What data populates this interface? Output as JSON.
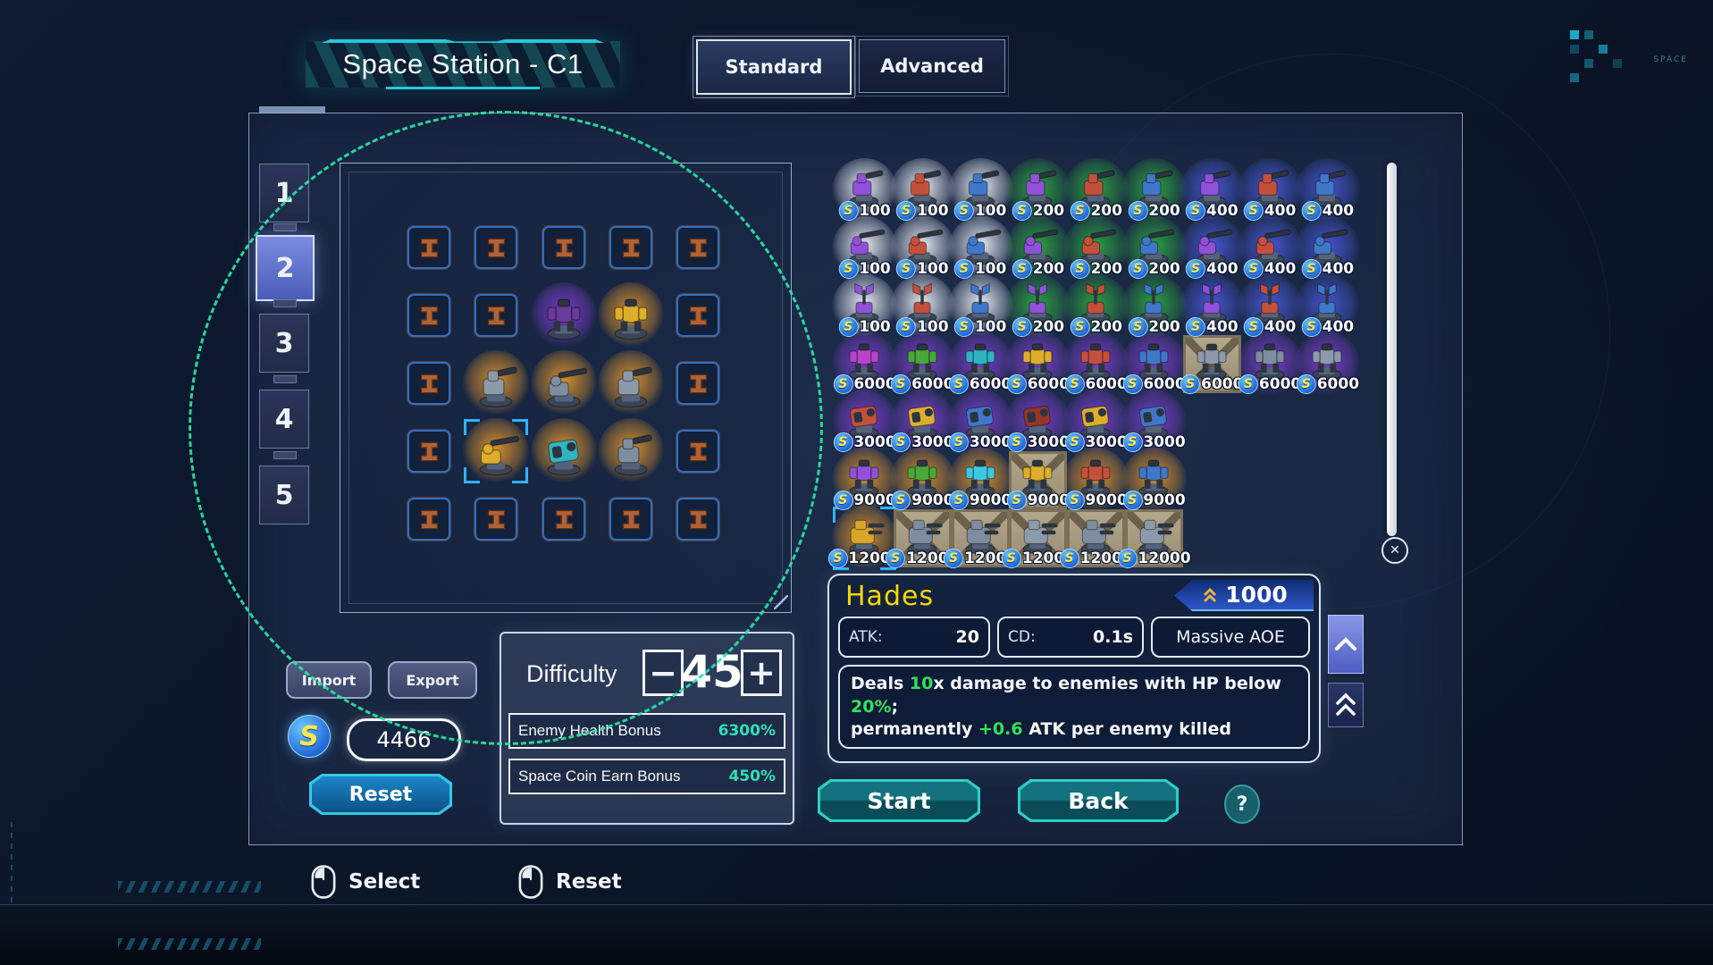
{
  "title": "Space Station - C1",
  "mode_tabs": [
    {
      "label": "Standard",
      "selected": true
    },
    {
      "label": "Advanced",
      "selected": false
    }
  ],
  "level_tabs": [
    {
      "label": "1",
      "selected": false
    },
    {
      "label": "2",
      "selected": true
    },
    {
      "label": "3",
      "selected": false
    },
    {
      "label": "4",
      "selected": false
    },
    {
      "label": "5",
      "selected": false
    }
  ],
  "currency_symbol": "S",
  "palette": {
    "purple": "#9050d8",
    "red": "#c4503c",
    "blue": "#3f77c9",
    "magenta": "#b844c8",
    "green": "#4aa838",
    "teal": "#2fb4c4",
    "cyan": "#3ec6e0",
    "yellow": "#dcae2c",
    "steel": "#8c9aaa",
    "slate": "#7e8ea0",
    "darkred": "#993428",
    "darkpurple": "#6a3a9c",
    "gold": "#d8a62a"
  },
  "board": {
    "rows": [
      [
        {
          "k": "e"
        },
        {
          "k": "e"
        },
        {
          "k": "e"
        },
        {
          "k": "e"
        },
        {
          "k": "e"
        }
      ],
      [
        {
          "k": "e"
        },
        {
          "k": "e"
        },
        {
          "k": "t",
          "t": "mech",
          "c": "darkpurple",
          "g": "purple"
        },
        {
          "k": "t",
          "t": "mech",
          "c": "yellow",
          "g": "orange"
        },
        {
          "k": "e"
        }
      ],
      [
        {
          "k": "e"
        },
        {
          "k": "t",
          "t": "gun1",
          "c": "steel",
          "g": "orange"
        },
        {
          "k": "t",
          "t": "gun2",
          "c": "slate",
          "g": "orange"
        },
        {
          "k": "t",
          "t": "gun1",
          "c": "steel",
          "g": "orange"
        },
        {
          "k": "e"
        }
      ],
      [
        {
          "k": "e"
        },
        {
          "k": "t",
          "t": "gun2",
          "c": "yellow",
          "g": "orange",
          "sel": true
        },
        {
          "k": "t",
          "t": "launcher",
          "c": "teal",
          "g": "orange"
        },
        {
          "k": "t",
          "t": "gun1",
          "c": "slate",
          "g": "orange"
        },
        {
          "k": "e"
        }
      ],
      [
        {
          "k": "e"
        },
        {
          "k": "e"
        },
        {
          "k": "e"
        },
        {
          "k": "e"
        },
        {
          "k": "e"
        }
      ]
    ]
  },
  "shop": {
    "rows": [
      [
        {
          "p": "100",
          "g": "light",
          "c": "purple",
          "t": "gun1"
        },
        {
          "p": "100",
          "g": "light",
          "c": "red",
          "t": "gun1"
        },
        {
          "p": "100",
          "g": "light",
          "c": "blue",
          "t": "gun1"
        },
        {
          "p": "200",
          "g": "green",
          "c": "purple",
          "t": "gun1"
        },
        {
          "p": "200",
          "g": "green",
          "c": "red",
          "t": "gun1"
        },
        {
          "p": "200",
          "g": "green",
          "c": "blue",
          "t": "gun1"
        },
        {
          "p": "400",
          "g": "blue",
          "c": "purple",
          "t": "gun1"
        },
        {
          "p": "400",
          "g": "blue",
          "c": "red",
          "t": "gun1"
        },
        {
          "p": "400",
          "g": "blue",
          "c": "blue",
          "t": "gun1"
        }
      ],
      [
        {
          "p": "100",
          "g": "light",
          "c": "purple",
          "t": "gun2"
        },
        {
          "p": "100",
          "g": "light",
          "c": "red",
          "t": "gun2"
        },
        {
          "p": "100",
          "g": "light",
          "c": "blue",
          "t": "gun2"
        },
        {
          "p": "200",
          "g": "green",
          "c": "purple",
          "t": "gun2"
        },
        {
          "p": "200",
          "g": "green",
          "c": "red",
          "t": "gun2"
        },
        {
          "p": "200",
          "g": "green",
          "c": "blue",
          "t": "gun2"
        },
        {
          "p": "400",
          "g": "blue",
          "c": "purple",
          "t": "gun2"
        },
        {
          "p": "400",
          "g": "blue",
          "c": "red",
          "t": "gun2"
        },
        {
          "p": "400",
          "g": "blue",
          "c": "blue",
          "t": "gun2"
        }
      ],
      [
        {
          "p": "100",
          "g": "light",
          "c": "purple",
          "t": "radar"
        },
        {
          "p": "100",
          "g": "light",
          "c": "red",
          "t": "radar"
        },
        {
          "p": "100",
          "g": "light",
          "c": "blue",
          "t": "radar"
        },
        {
          "p": "200",
          "g": "green",
          "c": "purple",
          "t": "radar"
        },
        {
          "p": "200",
          "g": "green",
          "c": "red",
          "t": "radar"
        },
        {
          "p": "200",
          "g": "green",
          "c": "blue",
          "t": "radar"
        },
        {
          "p": "400",
          "g": "blue",
          "c": "purple",
          "t": "radar"
        },
        {
          "p": "400",
          "g": "blue",
          "c": "red",
          "t": "radar"
        },
        {
          "p": "400",
          "g": "blue",
          "c": "blue",
          "t": "radar"
        }
      ],
      [
        {
          "p": "6000",
          "g": "purple",
          "c": "magenta",
          "t": "mech"
        },
        {
          "p": "6000",
          "g": "purple",
          "c": "green",
          "t": "mech"
        },
        {
          "p": "6000",
          "g": "purple",
          "c": "teal",
          "t": "mech"
        },
        {
          "p": "6000",
          "g": "purple",
          "c": "yellow",
          "t": "mech"
        },
        {
          "p": "6000",
          "g": "purple",
          "c": "red",
          "t": "mech"
        },
        {
          "p": "6000",
          "g": "purple",
          "c": "blue",
          "t": "mech"
        },
        {
          "p": "6000",
          "crate": true,
          "c": "steel",
          "t": "mech"
        },
        {
          "p": "6000",
          "g": "purple",
          "c": "slate",
          "t": "mech"
        },
        {
          "p": "6000",
          "g": "purple",
          "c": "steel",
          "t": "mech"
        }
      ],
      [
        {
          "p": "3000",
          "g": "purple",
          "c": "red",
          "t": "launcher"
        },
        {
          "p": "3000",
          "g": "purple",
          "c": "yellow",
          "t": "launcher"
        },
        {
          "p": "3000",
          "g": "purple",
          "c": "blue",
          "t": "launcher"
        },
        {
          "p": "3000",
          "g": "purple",
          "c": "darkred",
          "t": "launcher"
        },
        {
          "p": "3000",
          "g": "purple",
          "c": "yellow",
          "t": "launcher"
        },
        {
          "p": "3000",
          "g": "purple",
          "c": "blue",
          "t": "launcher"
        }
      ],
      [
        {
          "p": "9000",
          "g": "orange",
          "c": "purple",
          "t": "mech"
        },
        {
          "p": "9000",
          "g": "orange",
          "c": "green",
          "t": "mech"
        },
        {
          "p": "9000",
          "g": "orange",
          "c": "cyan",
          "t": "mech"
        },
        {
          "p": "9000",
          "crate": true,
          "c": "yellow",
          "t": "mech"
        },
        {
          "p": "9000",
          "g": "orange",
          "c": "red",
          "t": "mech"
        },
        {
          "p": "9000",
          "g": "orange",
          "c": "blue",
          "t": "mech"
        }
      ],
      [
        {
          "p": "12000",
          "g": "orange",
          "c": "gold",
          "t": "heavy",
          "sel": true
        },
        {
          "p": "12000",
          "crate": true,
          "c": "slate",
          "t": "heavy"
        },
        {
          "p": "12000",
          "crate": true,
          "c": "slate",
          "t": "heavy"
        },
        {
          "p": "12000",
          "crate": true,
          "c": "steel",
          "t": "heavy"
        },
        {
          "p": "12000",
          "crate": true,
          "c": "slate",
          "t": "heavy"
        },
        {
          "p": "12000",
          "crate": true,
          "c": "steel",
          "t": "heavy"
        }
      ]
    ]
  },
  "scrollbar": {
    "close_icon": "✕"
  },
  "detail": {
    "name": "Hades",
    "upgrade_cost": "1000",
    "atk_label": "ATK:",
    "atk_value": "20",
    "cd_label": "CD:",
    "cd_value": "0.1s",
    "trait": "Massive AOE",
    "description": [
      {
        "text": "Deals ",
        "green": false
      },
      {
        "text": "10",
        "green": true
      },
      {
        "text": "x damage to enemies with HP below ",
        "green": false
      },
      {
        "text": "20%",
        "green": true
      },
      {
        "text": ";\n",
        "green": false
      },
      {
        "text": "permanently ",
        "green": false
      },
      {
        "text": "+0.6",
        "green": true
      },
      {
        "text": " ATK per enemy killed",
        "green": false
      }
    ]
  },
  "economy": {
    "import_label": "Import",
    "export_label": "Export",
    "coin_amount": "4466",
    "reset_label": "Reset"
  },
  "difficulty": {
    "label": "Difficulty",
    "minus": "−",
    "value": "45",
    "plus": "+",
    "bonuses": [
      {
        "label": "Enemy Health Bonus",
        "value": "6300%"
      },
      {
        "label": "Space Coin Earn Bonus",
        "value": "450%"
      }
    ]
  },
  "actions": {
    "start": "Start",
    "back": "Back",
    "help": "?"
  },
  "legend": [
    {
      "label": "Select"
    },
    {
      "label": "Reset"
    }
  ],
  "deco": {
    "corner_label": "SPACE"
  },
  "colors": {
    "accent_teal": "#2ad0c4",
    "circle_green": "#2be3a4",
    "highlight_green": "#35e05a",
    "bonus_teal": "#2fe0b8",
    "name_yellow": "#f5d800"
  }
}
